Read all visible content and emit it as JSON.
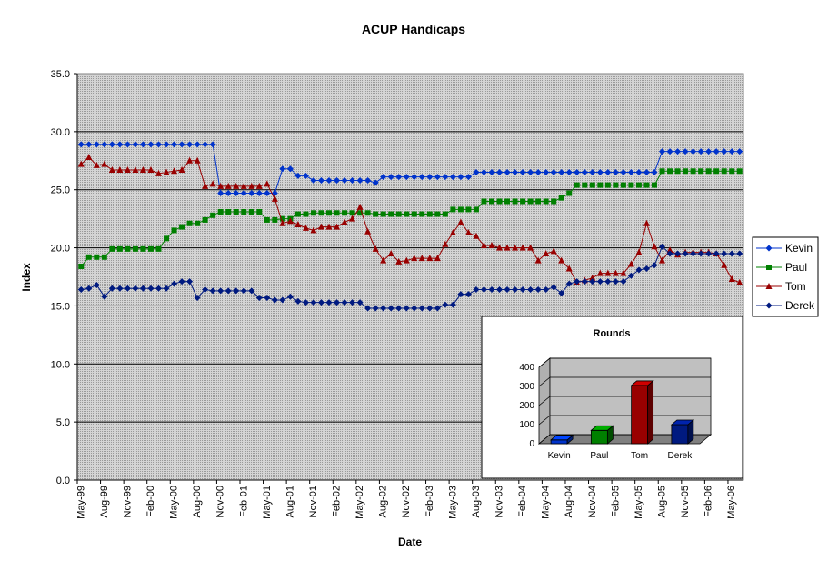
{
  "chart_data": [
    {
      "type": "line",
      "title": "ACUP Handicaps",
      "xlabel": "Date",
      "ylabel": "Index",
      "ylim": [
        0,
        35
      ],
      "yticks": [
        "0.0",
        "5.0",
        "10.0",
        "15.0",
        "20.0",
        "25.0",
        "30.0",
        "35.0"
      ],
      "x_tick_labels": [
        "May-99",
        "Aug-99",
        "Nov-99",
        "Feb-00",
        "May-00",
        "Aug-00",
        "Nov-00",
        "Feb-01",
        "May-01",
        "Aug-01",
        "Nov-01",
        "Feb-02",
        "May-02",
        "Aug-02",
        "Nov-02",
        "Feb-03",
        "May-03",
        "Aug-03",
        "Nov-03",
        "Feb-04",
        "May-04",
        "Aug-04",
        "Nov-04",
        "Feb-05",
        "May-05",
        "Aug-05",
        "Nov-05",
        "Feb-06",
        "May-06"
      ],
      "grid": true,
      "legend_position": "right",
      "series": [
        {
          "name": "Kevin",
          "color": "#0033cc",
          "marker": "diamond",
          "values": [
            28.9,
            28.9,
            28.9,
            28.9,
            28.9,
            28.9,
            28.9,
            28.9,
            28.9,
            28.9,
            28.9,
            28.9,
            28.9,
            28.9,
            28.9,
            28.9,
            28.9,
            28.9,
            24.7,
            24.7,
            24.7,
            24.7,
            24.7,
            24.7,
            24.7,
            24.7,
            26.8,
            26.8,
            26.2,
            26.2,
            25.8,
            25.8,
            25.8,
            25.8,
            25.8,
            25.8,
            25.8,
            25.8,
            25.6,
            26.1,
            26.1,
            26.1,
            26.1,
            26.1,
            26.1,
            26.1,
            26.1,
            26.1,
            26.1,
            26.1,
            26.1,
            26.5,
            26.5,
            26.5,
            26.5,
            26.5,
            26.5,
            26.5,
            26.5,
            26.5,
            26.5,
            26.5,
            26.5,
            26.5,
            26.5,
            26.5,
            26.5,
            26.5,
            26.5,
            26.5,
            26.5,
            26.5,
            26.5,
            26.5,
            26.5,
            28.3,
            28.3,
            28.3,
            28.3,
            28.3,
            28.3,
            28.3,
            28.3,
            28.3,
            28.3,
            28.3
          ]
        },
        {
          "name": "Paul",
          "color": "#008000",
          "marker": "square",
          "values": [
            18.4,
            19.2,
            19.2,
            19.2,
            19.9,
            19.9,
            19.9,
            19.9,
            19.9,
            19.9,
            19.9,
            20.8,
            21.5,
            21.8,
            22.1,
            22.1,
            22.4,
            22.8,
            23.1,
            23.1,
            23.1,
            23.1,
            23.1,
            23.1,
            22.4,
            22.4,
            22.5,
            22.5,
            22.9,
            22.9,
            23.0,
            23.0,
            23.0,
            23.0,
            23.0,
            23.0,
            23.0,
            23.0,
            22.9,
            22.9,
            22.9,
            22.9,
            22.9,
            22.9,
            22.9,
            22.9,
            22.9,
            22.9,
            23.3,
            23.3,
            23.3,
            23.3,
            24.0,
            24.0,
            24.0,
            24.0,
            24.0,
            24.0,
            24.0,
            24.0,
            24.0,
            24.0,
            24.3,
            24.7,
            25.4,
            25.4,
            25.4,
            25.4,
            25.4,
            25.4,
            25.4,
            25.4,
            25.4,
            25.4,
            25.4,
            26.6,
            26.6,
            26.6,
            26.6,
            26.6,
            26.6,
            26.6,
            26.6,
            26.6,
            26.6,
            26.6
          ]
        },
        {
          "name": "Tom",
          "color": "#990000",
          "marker": "triangle",
          "values": [
            27.2,
            27.8,
            27.1,
            27.2,
            26.7,
            26.7,
            26.7,
            26.7,
            26.7,
            26.7,
            26.4,
            26.5,
            26.6,
            26.7,
            27.5,
            27.5,
            25.3,
            25.5,
            25.3,
            25.3,
            25.3,
            25.3,
            25.3,
            25.3,
            25.5,
            24.2,
            22.1,
            22.3,
            22.0,
            21.7,
            21.5,
            21.8,
            21.8,
            21.8,
            22.2,
            22.5,
            23.5,
            21.4,
            19.9,
            18.9,
            19.5,
            18.8,
            18.9,
            19.1,
            19.1,
            19.1,
            19.1,
            20.3,
            21.3,
            22.2,
            21.3,
            21.0,
            20.2,
            20.2,
            20.0,
            20.0,
            20.0,
            20.0,
            20.0,
            18.9,
            19.5,
            19.7,
            18.9,
            18.2,
            17.0,
            17.2,
            17.4,
            17.8,
            17.8,
            17.8,
            17.8,
            18.6,
            19.6,
            22.1,
            20.1,
            18.9,
            19.8,
            19.4,
            19.6,
            19.6,
            19.6,
            19.6,
            19.5,
            18.5,
            17.3,
            17.0
          ]
        },
        {
          "name": "Derek",
          "color": "#001a80",
          "marker": "diamond",
          "values": [
            16.4,
            16.5,
            16.8,
            15.8,
            16.5,
            16.5,
            16.5,
            16.5,
            16.5,
            16.5,
            16.5,
            16.5,
            16.9,
            17.1,
            17.1,
            15.7,
            16.4,
            16.3,
            16.3,
            16.3,
            16.3,
            16.3,
            16.3,
            15.7,
            15.7,
            15.5,
            15.5,
            15.8,
            15.4,
            15.3,
            15.3,
            15.3,
            15.3,
            15.3,
            15.3,
            15.3,
            15.3,
            14.8,
            14.8,
            14.8,
            14.8,
            14.8,
            14.8,
            14.8,
            14.8,
            14.8,
            14.8,
            15.1,
            15.1,
            16.0,
            16.0,
            16.4,
            16.4,
            16.4,
            16.4,
            16.4,
            16.4,
            16.4,
            16.4,
            16.4,
            16.4,
            16.6,
            16.1,
            16.9,
            17.1,
            17.1,
            17.1,
            17.1,
            17.1,
            17.1,
            17.1,
            17.6,
            18.1,
            18.2,
            18.5,
            20.1,
            19.5,
            19.5,
            19.5,
            19.5,
            19.5,
            19.5,
            19.5,
            19.5,
            19.5,
            19.5
          ]
        }
      ]
    },
    {
      "type": "bar",
      "title": "Rounds",
      "categories": [
        "Kevin",
        "Paul",
        "Tom",
        "Derek"
      ],
      "values": [
        20,
        70,
        305,
        100
      ],
      "colors": [
        "#0033cc",
        "#008000",
        "#990000",
        "#001a80"
      ],
      "ylim": [
        0,
        400
      ],
      "yticks": [
        "0",
        "100",
        "200",
        "300",
        "400"
      ],
      "grid": true,
      "three_d": true
    }
  ]
}
